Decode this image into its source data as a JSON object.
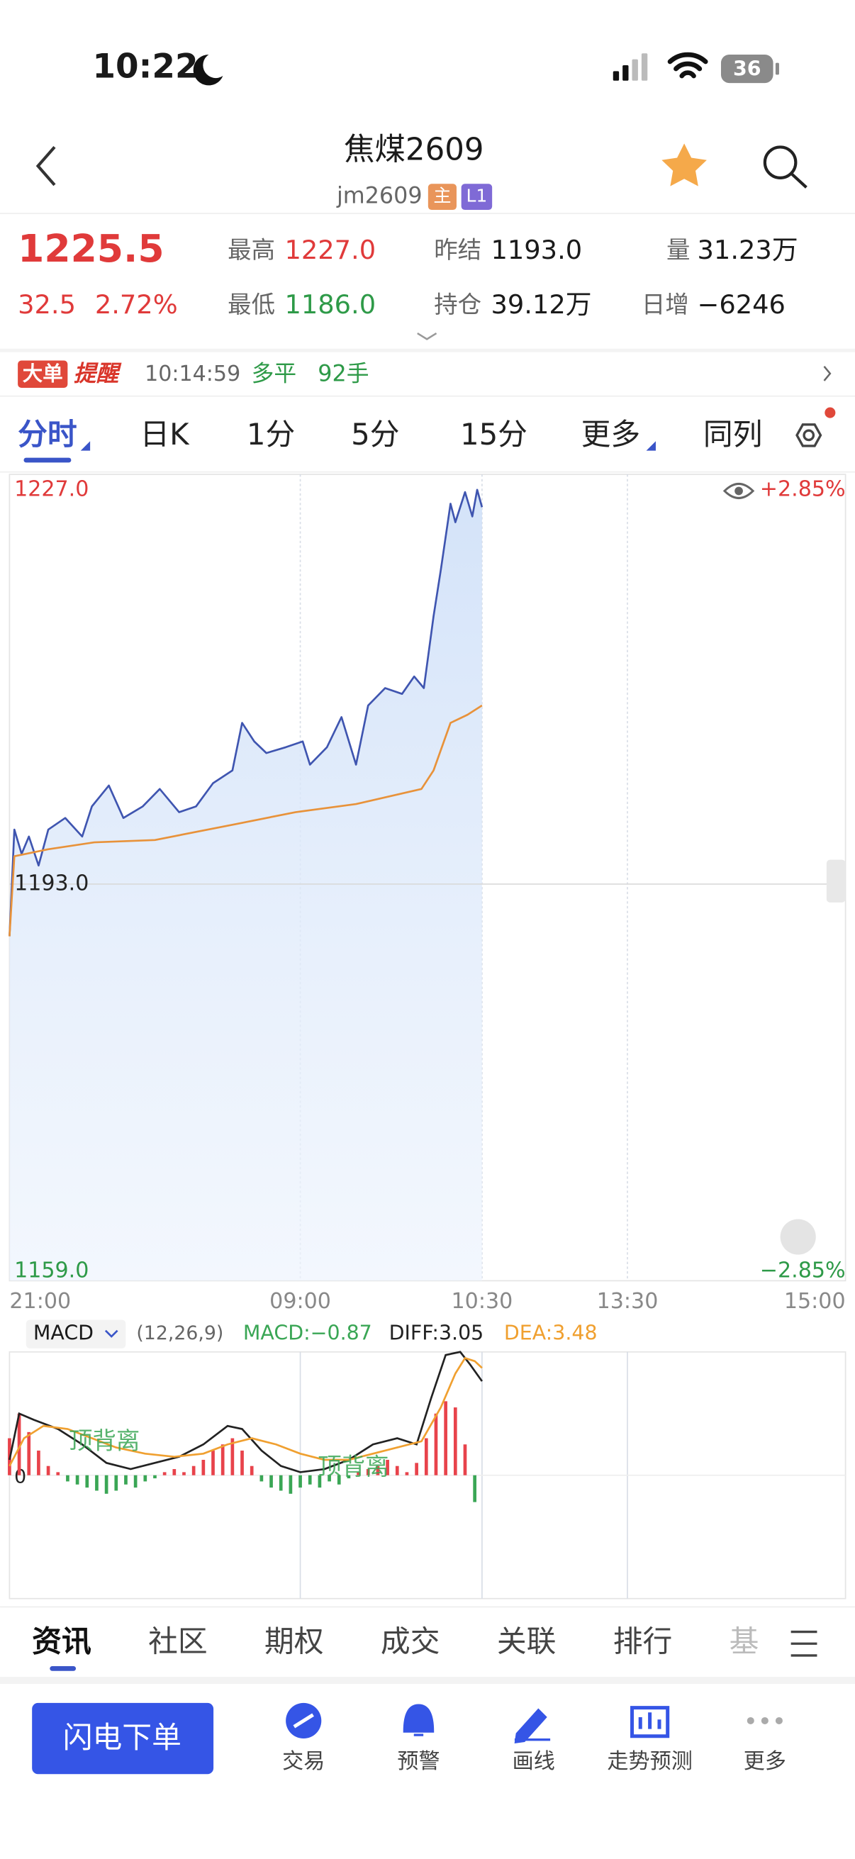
{
  "status_bar": {
    "time": "10:22",
    "battery": "36"
  },
  "header": {
    "title": "焦煤2609",
    "code": "jm2609",
    "badges": [
      "主",
      "L1"
    ]
  },
  "quote": {
    "last": "1225.5",
    "change": "32.5",
    "change_pct": "2.72%",
    "fields": [
      {
        "label": "最高",
        "value": "1227.0"
      },
      {
        "label": "最低",
        "value": "1186.0"
      },
      {
        "label": "昨结",
        "value": "1193.0"
      },
      {
        "label": "持仓",
        "value": "39.12万"
      },
      {
        "label": "量",
        "value": "31.23万"
      },
      {
        "label": "日增",
        "value": "−6246"
      }
    ]
  },
  "alert": {
    "tag": "大单",
    "kind": "提醒",
    "time": "10:14:59",
    "action": "多平",
    "qty": "92手"
  },
  "period_tabs": [
    "分时",
    "日K",
    "1分",
    "5分",
    "15分",
    "更多",
    "同列"
  ],
  "chart_data": [
    {
      "type": "line",
      "xlim": [
        0,
        345
      ],
      "xticks": [
        {
          "value": 0,
          "label": "21:00"
        },
        {
          "value": 120,
          "label": "09:00"
        },
        {
          "value": 195,
          "label": "10:30"
        },
        {
          "value": 255,
          "label": "13:30"
        },
        {
          "value": 345,
          "label": "15:00"
        }
      ],
      "ylim": [
        1159,
        1227
      ],
      "yticks": [
        {
          "value": 1159,
          "label": "1159.0"
        },
        {
          "value": 1193,
          "label": "1193.0"
        },
        {
          "value": 1227,
          "label": "1227.0"
        }
      ],
      "y2lim": [
        -2.85,
        2.85
      ],
      "y2ticks": [
        {
          "value": -2.85,
          "label": "−2.85%"
        },
        {
          "value": 2.85,
          "label": "+2.85%"
        }
      ],
      "series": [
        {
          "color": "#3f55b0",
          "x": [
            0,
            2,
            5,
            8,
            12,
            16,
            23,
            30,
            34,
            41,
            47,
            55,
            62,
            70,
            77,
            84,
            92,
            96,
            101,
            106,
            114,
            121,
            124,
            131,
            137,
            143,
            148,
            155,
            162,
            167,
            171,
            175,
            178,
            182,
            184,
            188,
            191,
            193,
            195
          ],
          "values": [
            1188.5,
            1197.7,
            1195.6,
            1197.1,
            1194.6,
            1197.7,
            1198.7,
            1197.1,
            1199.7,
            1201.5,
            1198.7,
            1199.7,
            1201.2,
            1199.2,
            1199.7,
            1201.7,
            1202.8,
            1206.9,
            1205.3,
            1204.3,
            1204.8,
            1205.3,
            1203.3,
            1204.8,
            1207.4,
            1203.3,
            1208.4,
            1209.9,
            1209.4,
            1210.9,
            1209.9,
            1216.1,
            1220.1,
            1225.8,
            1224.2,
            1226.8,
            1224.7,
            1227.0,
            1225.5
          ]
        },
        {
          "color": "#e8923a",
          "x": [
            0,
            2,
            16,
            35,
            60,
            94,
            118,
            143,
            170,
            175,
            182,
            189,
            195
          ],
          "values": [
            1188.5,
            1195.4,
            1196.0,
            1196.6,
            1196.8,
            1198.2,
            1199.2,
            1199.9,
            1201.2,
            1202.8,
            1206.9,
            1207.6,
            1208.4
          ]
        }
      ]
    },
    {
      "type": "macd",
      "indicator": "MACD",
      "params": "(12,26,9)",
      "xlim": [
        0,
        345
      ],
      "ylim": [
        -4,
        4
      ],
      "yticks": [
        0
      ],
      "annotations": [
        "顶背离",
        "顶背离"
      ],
      "series": [
        {
          "name": "MACD:−0.87",
          "color": "#3aa655",
          "up_color": "#e8434b",
          "x": [
            0,
            4,
            8,
            12,
            16,
            20,
            24,
            28,
            32,
            36,
            40,
            44,
            48,
            52,
            56,
            60,
            64,
            68,
            72,
            76,
            80,
            84,
            88,
            92,
            96,
            100,
            104,
            108,
            112,
            116,
            120,
            124,
            128,
            132,
            136,
            140,
            144,
            148,
            152,
            156,
            160,
            164,
            168,
            172,
            176,
            180,
            184,
            188,
            192
          ],
          "values": [
            1.2,
            2.0,
            1.4,
            0.8,
            0.3,
            0.1,
            -0.2,
            -0.3,
            -0.4,
            -0.5,
            -0.6,
            -0.5,
            -0.3,
            -0.4,
            -0.2,
            -0.1,
            0.1,
            0.2,
            0.1,
            0.3,
            0.5,
            0.8,
            1.0,
            1.2,
            0.8,
            0.3,
            -0.2,
            -0.4,
            -0.5,
            -0.6,
            -0.4,
            -0.3,
            -0.4,
            -0.2,
            -0.3,
            -0.1,
            0.1,
            0.2,
            0.3,
            0.5,
            0.3,
            0.1,
            0.4,
            1.2,
            2.0,
            2.4,
            2.2,
            1.0,
            -0.87
          ]
        },
        {
          "name": "DIFF:3.05",
          "color": "#222222",
          "x": [
            0,
            4,
            10,
            20,
            30,
            40,
            50,
            60,
            70,
            80,
            90,
            96,
            104,
            112,
            120,
            130,
            140,
            150,
            160,
            168,
            174,
            180,
            186,
            190,
            195
          ],
          "values": [
            0.5,
            2.0,
            1.8,
            1.5,
            1.0,
            0.4,
            0.2,
            0.4,
            0.6,
            1.0,
            1.6,
            1.5,
            0.8,
            0.3,
            0.1,
            0.2,
            0.5,
            1.0,
            1.2,
            1.0,
            2.5,
            3.9,
            4.0,
            3.6,
            3.05
          ]
        },
        {
          "name": "DEA:3.48",
          "color": "#f0a030",
          "x": [
            0,
            6,
            14,
            24,
            34,
            44,
            56,
            68,
            80,
            90,
            100,
            110,
            120,
            130,
            140,
            150,
            160,
            170,
            178,
            184,
            188,
            192,
            195
          ],
          "values": [
            0.3,
            1.2,
            1.6,
            1.5,
            1.2,
            0.9,
            0.7,
            0.6,
            0.7,
            1.0,
            1.2,
            1.0,
            0.7,
            0.5,
            0.5,
            0.7,
            0.9,
            1.1,
            2.2,
            3.3,
            3.8,
            3.7,
            3.48
          ]
        }
      ]
    }
  ],
  "content_tabs": [
    "资讯",
    "社区",
    "期权",
    "成交",
    "关联",
    "排行",
    "基"
  ],
  "toolbar": {
    "primary": "闪电下单",
    "items": [
      "交易",
      "预警",
      "画线",
      "走势预测",
      "更多"
    ]
  }
}
